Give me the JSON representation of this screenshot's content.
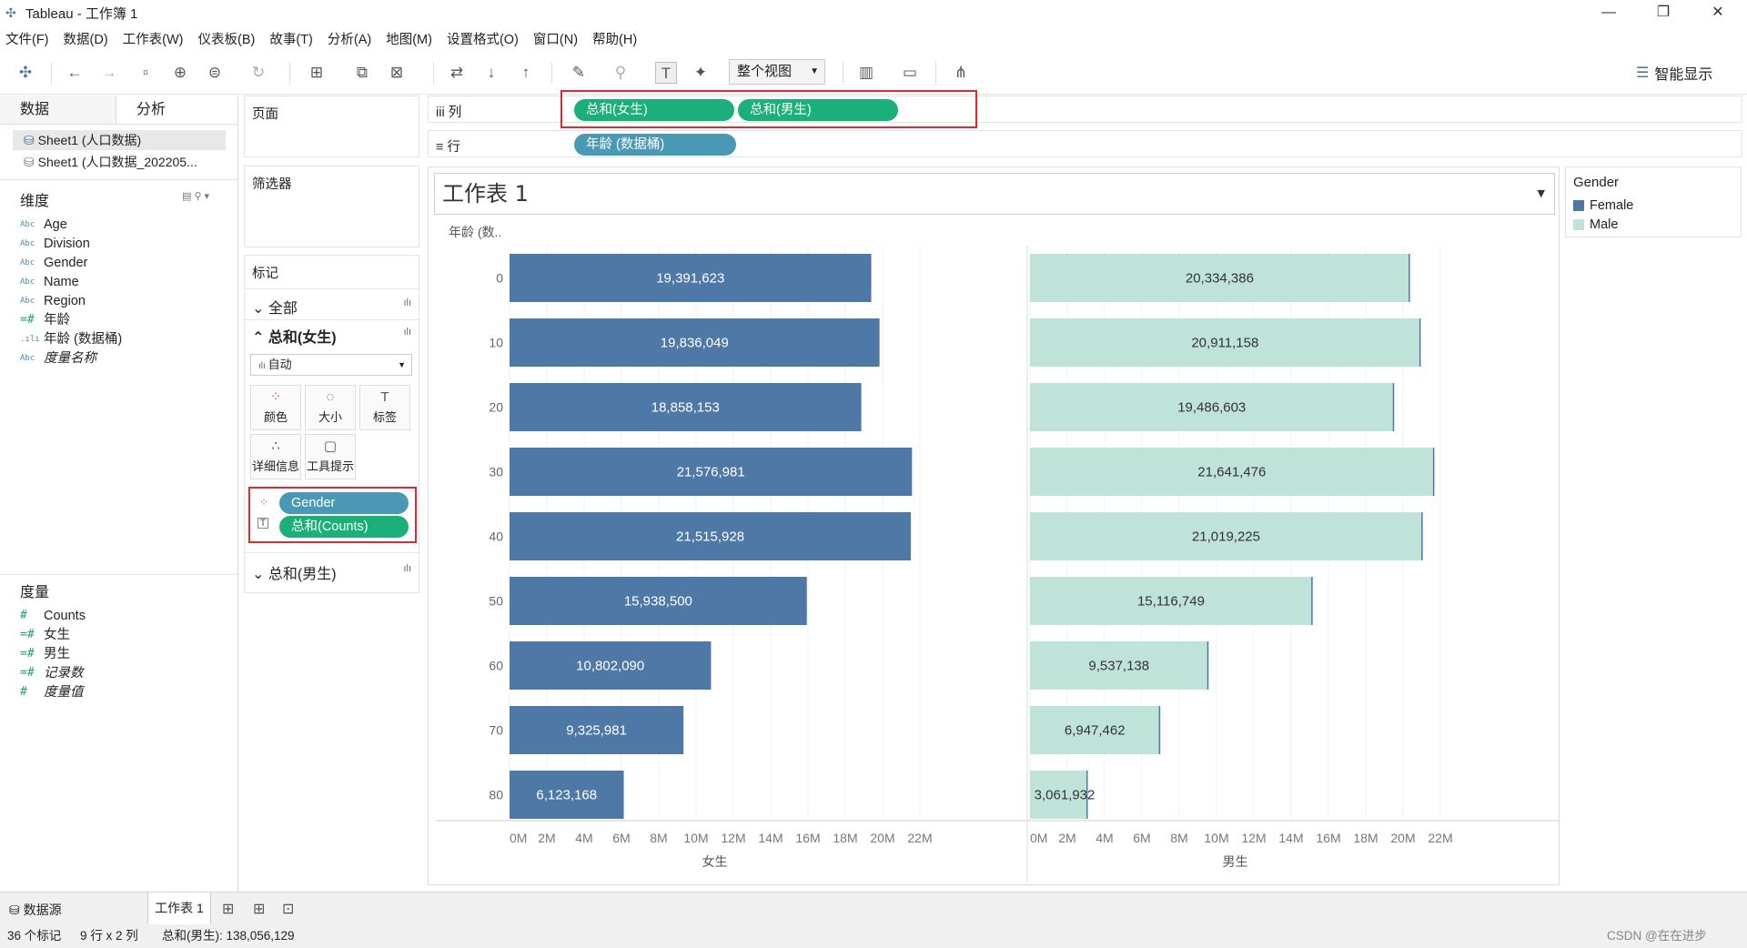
{
  "window": {
    "title": "Tableau - 工作簿 1",
    "minimize": "—",
    "restore": "❐",
    "close": "✕"
  },
  "menu": [
    "文件(F)",
    "数据(D)",
    "工作表(W)",
    "仪表板(B)",
    "故事(T)",
    "分析(A)",
    "地图(M)",
    "设置格式(O)",
    "窗口(N)",
    "帮助(H)"
  ],
  "toolbar": {
    "fit_label": "整个视图",
    "show_me": "智能显示"
  },
  "left_panel": {
    "tab_data": "数据",
    "tab_analysis": "分析",
    "datasources": [
      "Sheet1 (人口数据)",
      "Sheet1 (人口数据_202205..."
    ],
    "dimensions_title": "维度",
    "dimensions": [
      {
        "icon": "Abc",
        "label": "Age"
      },
      {
        "icon": "Abc",
        "label": "Division"
      },
      {
        "icon": "Abc",
        "label": "Gender"
      },
      {
        "icon": "Abc",
        "label": "Name"
      },
      {
        "icon": "Abc",
        "label": "Region"
      },
      {
        "icon": "=#",
        "label": "年龄"
      },
      {
        "icon": ".ılı",
        "label": "年龄 (数据桶)"
      },
      {
        "icon": "Abc",
        "label": "度量名称"
      }
    ],
    "measures_title": "度量",
    "measures": [
      {
        "icon": "#",
        "label": "Counts"
      },
      {
        "icon": "=#",
        "label": "女生"
      },
      {
        "icon": "=#",
        "label": "男生"
      },
      {
        "icon": "=#",
        "label": "记录数"
      },
      {
        "icon": "#",
        "label": "度量值"
      }
    ]
  },
  "shelves": {
    "pages": "页面",
    "filters": "筛选器",
    "marks": "标记",
    "marks_all": "全部",
    "marks_female": "总和(女生)",
    "marks_male": "总和(男生)",
    "mark_type": "自动",
    "btn_color": "颜色",
    "btn_size": "大小",
    "btn_label": "标签",
    "btn_detail": "详细信息",
    "btn_tooltip": "工具提示",
    "mark_pills": [
      "Gender",
      "总和(Counts)"
    ],
    "columns_label": "列",
    "rows_label": "行",
    "column_pills": [
      "总和(女生)",
      "总和(男生)"
    ],
    "row_pills": [
      "年龄 (数据桶)"
    ]
  },
  "sheet_title": "工作表 1",
  "legend": {
    "title": "Gender",
    "items": [
      {
        "label": "Female",
        "color": "#4e79a7"
      },
      {
        "label": "Male",
        "color": "#bfe3d9"
      }
    ]
  },
  "chart_data": {
    "type": "bar",
    "orientation": "horizontal",
    "row_header": "年龄 (数..",
    "categories": [
      "0",
      "10",
      "20",
      "30",
      "40",
      "50",
      "60",
      "70",
      "80"
    ],
    "series": [
      {
        "name": "女生",
        "color": "#4e79a7",
        "label_color": "#ffffff",
        "values": [
          19391623,
          19836049,
          18858153,
          21576981,
          21515928,
          15938500,
          10802090,
          9325981,
          6123168
        ],
        "labels": [
          "19,391,623",
          "19,836,049",
          "18,858,153",
          "21,576,981",
          "21,515,928",
          "15,938,500",
          "10,802,090",
          "9,325,981",
          "6,123,168"
        ]
      },
      {
        "name": "男生",
        "color": "#bfe3d9",
        "label_color": "#333333",
        "values": [
          20334386,
          20911158,
          19486603,
          21641476,
          21019225,
          15116749,
          9537138,
          6947462,
          3061932
        ],
        "labels": [
          "20,334,386",
          "20,911,158",
          "19,486,603",
          "21,641,476",
          "21,019,225",
          "15,116,749",
          "9,537,138",
          "6,947,462",
          "3,061,932"
        ]
      }
    ],
    "xlim": [
      0,
      22000000
    ],
    "ticks": [
      "0M",
      "2M",
      "4M",
      "6M",
      "8M",
      "10M",
      "12M",
      "14M",
      "16M",
      "18M",
      "20M",
      "22M"
    ],
    "tick_values": [
      0,
      2000000,
      4000000,
      6000000,
      8000000,
      10000000,
      12000000,
      14000000,
      16000000,
      18000000,
      20000000,
      22000000
    ],
    "axis_titles": [
      "女生",
      "男生"
    ],
    "grid": true
  },
  "tabs": {
    "datasource": "数据源",
    "sheet": "工作表 1"
  },
  "status": {
    "marks": "36 个标记",
    "dims": "9 行 x 2 列",
    "sum": "总和(男生): 138,056,129"
  },
  "watermark": "CSDN @在在进步"
}
